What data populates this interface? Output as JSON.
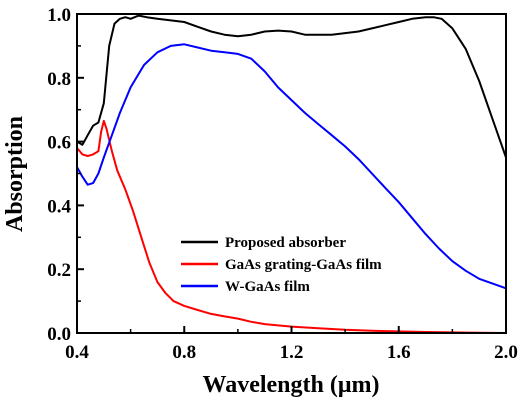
{
  "chart_data": {
    "type": "line",
    "title": "",
    "xlabel": "Wavelength (μm)",
    "ylabel": "Absorption",
    "xlim": [
      0.4,
      2.0
    ],
    "ylim": [
      0.0,
      1.0
    ],
    "x_ticks": [
      "0.4",
      "0.8",
      "1.2",
      "1.6",
      "2.0"
    ],
    "y_ticks": [
      "0.0",
      "0.2",
      "0.4",
      "0.6",
      "0.8",
      "1.0"
    ],
    "grid": false,
    "legend_position": "center",
    "series": [
      {
        "name": "Proposed absorber",
        "color": "#000000",
        "points": [
          [
            0.4,
            0.6
          ],
          [
            0.42,
            0.59
          ],
          [
            0.44,
            0.62
          ],
          [
            0.46,
            0.65
          ],
          [
            0.48,
            0.66
          ],
          [
            0.5,
            0.72
          ],
          [
            0.52,
            0.9
          ],
          [
            0.54,
            0.97
          ],
          [
            0.56,
            0.985
          ],
          [
            0.58,
            0.99
          ],
          [
            0.6,
            0.985
          ],
          [
            0.63,
            0.995
          ],
          [
            0.66,
            0.99
          ],
          [
            0.7,
            0.985
          ],
          [
            0.75,
            0.98
          ],
          [
            0.8,
            0.975
          ],
          [
            0.85,
            0.96
          ],
          [
            0.9,
            0.945
          ],
          [
            0.95,
            0.935
          ],
          [
            1.0,
            0.93
          ],
          [
            1.05,
            0.935
          ],
          [
            1.1,
            0.945
          ],
          [
            1.15,
            0.948
          ],
          [
            1.2,
            0.945
          ],
          [
            1.25,
            0.935
          ],
          [
            1.3,
            0.935
          ],
          [
            1.35,
            0.935
          ],
          [
            1.4,
            0.94
          ],
          [
            1.45,
            0.945
          ],
          [
            1.5,
            0.955
          ],
          [
            1.55,
            0.965
          ],
          [
            1.6,
            0.975
          ],
          [
            1.65,
            0.985
          ],
          [
            1.7,
            0.99
          ],
          [
            1.73,
            0.99
          ],
          [
            1.76,
            0.985
          ],
          [
            1.8,
            0.955
          ],
          [
            1.85,
            0.89
          ],
          [
            1.9,
            0.79
          ],
          [
            1.95,
            0.67
          ],
          [
            2.0,
            0.55
          ]
        ]
      },
      {
        "name": "GaAs grating-GaAs film",
        "color": "#ff0000",
        "points": [
          [
            0.4,
            0.58
          ],
          [
            0.42,
            0.56
          ],
          [
            0.44,
            0.555
          ],
          [
            0.46,
            0.56
          ],
          [
            0.48,
            0.57
          ],
          [
            0.49,
            0.63
          ],
          [
            0.5,
            0.665
          ],
          [
            0.51,
            0.64
          ],
          [
            0.53,
            0.57
          ],
          [
            0.55,
            0.51
          ],
          [
            0.58,
            0.45
          ],
          [
            0.61,
            0.38
          ],
          [
            0.64,
            0.3
          ],
          [
            0.67,
            0.22
          ],
          [
            0.7,
            0.16
          ],
          [
            0.73,
            0.125
          ],
          [
            0.76,
            0.1
          ],
          [
            0.8,
            0.085
          ],
          [
            0.85,
            0.072
          ],
          [
            0.9,
            0.06
          ],
          [
            0.95,
            0.052
          ],
          [
            1.0,
            0.045
          ],
          [
            1.05,
            0.035
          ],
          [
            1.1,
            0.028
          ],
          [
            1.2,
            0.02
          ],
          [
            1.3,
            0.015
          ],
          [
            1.4,
            0.01
          ],
          [
            1.5,
            0.007
          ],
          [
            1.6,
            0.005
          ],
          [
            1.7,
            0.003
          ],
          [
            1.8,
            0.002
          ],
          [
            1.9,
            0.001
          ],
          [
            2.0,
            0.0
          ]
        ]
      },
      {
        "name": "W-GaAs film",
        "color": "#0000ff",
        "points": [
          [
            0.4,
            0.52
          ],
          [
            0.42,
            0.49
          ],
          [
            0.44,
            0.465
          ],
          [
            0.46,
            0.47
          ],
          [
            0.48,
            0.5
          ],
          [
            0.5,
            0.55
          ],
          [
            0.53,
            0.62
          ],
          [
            0.56,
            0.69
          ],
          [
            0.6,
            0.77
          ],
          [
            0.65,
            0.84
          ],
          [
            0.7,
            0.88
          ],
          [
            0.75,
            0.9
          ],
          [
            0.8,
            0.905
          ],
          [
            0.85,
            0.895
          ],
          [
            0.9,
            0.885
          ],
          [
            0.95,
            0.88
          ],
          [
            1.0,
            0.875
          ],
          [
            1.05,
            0.86
          ],
          [
            1.1,
            0.82
          ],
          [
            1.15,
            0.77
          ],
          [
            1.2,
            0.73
          ],
          [
            1.25,
            0.69
          ],
          [
            1.3,
            0.655
          ],
          [
            1.35,
            0.62
          ],
          [
            1.4,
            0.585
          ],
          [
            1.45,
            0.545
          ],
          [
            1.5,
            0.5
          ],
          [
            1.55,
            0.455
          ],
          [
            1.6,
            0.41
          ],
          [
            1.65,
            0.36
          ],
          [
            1.7,
            0.31
          ],
          [
            1.75,
            0.265
          ],
          [
            1.8,
            0.225
          ],
          [
            1.85,
            0.195
          ],
          [
            1.9,
            0.17
          ],
          [
            1.95,
            0.155
          ],
          [
            2.0,
            0.14
          ]
        ]
      }
    ]
  }
}
